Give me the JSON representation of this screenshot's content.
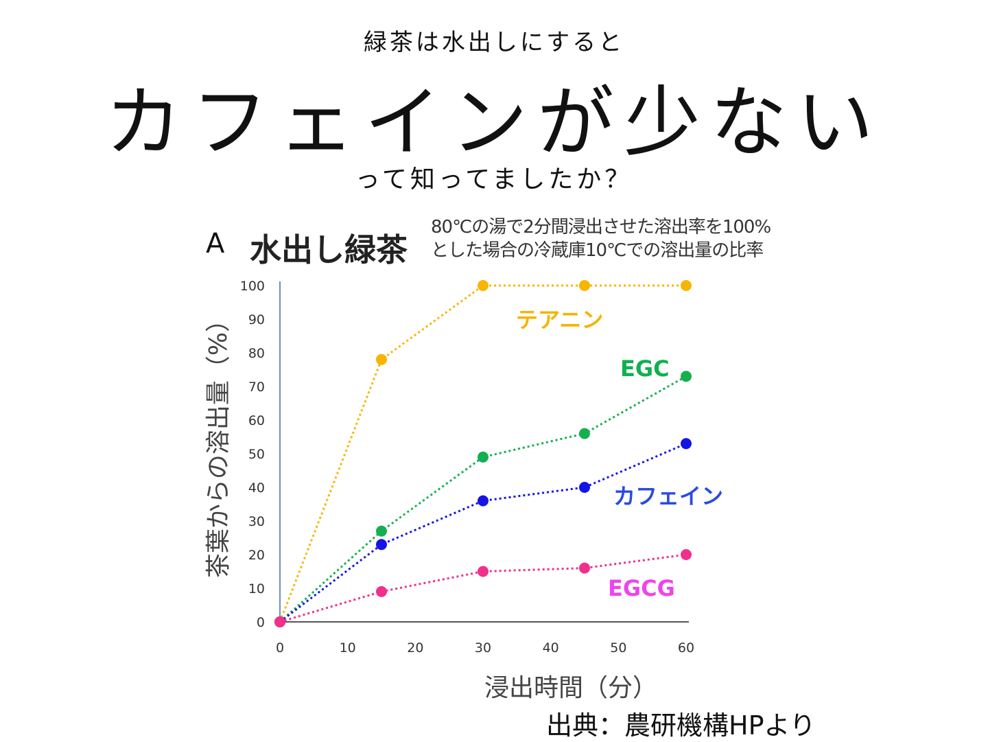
{
  "header": {
    "intro": "緑茶は水出しにすると",
    "headline": "カフェインが少ない",
    "question": "って知ってましたか？"
  },
  "panel_label": "A",
  "notes": {
    "line1": "80℃の湯で2分間浸出させた溶出率を100%",
    "line2": "とした場合の冷蔵庫10℃での溶出量の比率"
  },
  "source": "出典：農研機構HPより",
  "chart_data": {
    "type": "line",
    "title": "水出し緑茶",
    "xlabel": "浸出時間（分）",
    "ylabel": "茶葉からの溶出量（%）",
    "x_ticks": [
      0,
      10,
      20,
      30,
      40,
      50,
      60
    ],
    "y_ticks": [
      0,
      10,
      20,
      30,
      40,
      50,
      60,
      70,
      80,
      90,
      100
    ],
    "xlim": [
      0,
      60
    ],
    "ylim": [
      0,
      100
    ],
    "grid": false,
    "legend": "inline-labels",
    "series": [
      {
        "name": "テアニン",
        "color": "#f7b500",
        "x": [
          0,
          15,
          30,
          45,
          60
        ],
        "y": [
          0,
          78,
          100,
          100,
          100
        ]
      },
      {
        "name": "EGC",
        "color": "#14b050",
        "x": [
          0,
          15,
          30,
          45,
          60
        ],
        "y": [
          0,
          27,
          49,
          56,
          73
        ]
      },
      {
        "name": "カフェイン",
        "color": "#1414e6",
        "x": [
          0,
          15,
          30,
          45,
          60
        ],
        "y": [
          0,
          23,
          36,
          40,
          53
        ]
      },
      {
        "name": "EGCG",
        "color": "#f0308c",
        "x": [
          0,
          15,
          30,
          45,
          60
        ],
        "y": [
          0,
          9,
          15,
          16,
          20
        ]
      }
    ],
    "label_colors": {
      "テアニン": "#f5b400",
      "EGC": "#10b050",
      "カフェイン": "#2a4be0",
      "EGCG": "#ee44ee"
    }
  }
}
